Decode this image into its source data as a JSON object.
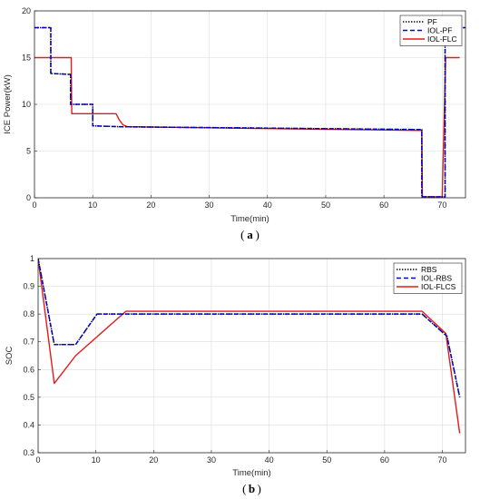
{
  "colors": {
    "black": "#000000",
    "blue": "#0000cc",
    "red": "#e41a1c",
    "grid": "#dcdcdc"
  },
  "chart_data": [
    {
      "type": "line",
      "caption": "a",
      "xlabel": "Time(min)",
      "ylabel": "ICE Power(kW)",
      "xlim": [
        0,
        74
      ],
      "ylim": [
        0,
        20
      ],
      "xticks": [
        0,
        10,
        20,
        30,
        40,
        50,
        60,
        70
      ],
      "yticks": [
        0,
        5,
        10,
        15,
        20
      ],
      "grid": true,
      "legend_position": "top-right",
      "series": [
        {
          "name": "PF",
          "style": "dotted",
          "color": "#000000",
          "x": [
            0,
            2.8,
            2.8,
            6.2,
            6.2,
            10,
            10,
            15,
            66.5,
            66.5,
            70.5,
            70.5,
            74
          ],
          "y": [
            18.2,
            18.2,
            13.3,
            13.2,
            10.0,
            10.0,
            7.7,
            7.6,
            7.3,
            0.1,
            0.1,
            18.2,
            18.2
          ]
        },
        {
          "name": "IOL-PF",
          "style": "dashed",
          "color": "#0000cc",
          "x": [
            0,
            2.8,
            2.8,
            6.2,
            6.2,
            10,
            10,
            15,
            66.5,
            66.5,
            70.5,
            70.5,
            74
          ],
          "y": [
            18.2,
            18.2,
            13.3,
            13.2,
            10.0,
            10.0,
            7.7,
            7.6,
            7.3,
            0.1,
            0.1,
            18.2,
            18.2
          ]
        },
        {
          "name": "IOL-FLC",
          "style": "solid",
          "color": "#e41a1c",
          "x": [
            0,
            6.3,
            6.4,
            14,
            14.6,
            15.2,
            16,
            66.5,
            66.6,
            70,
            70.6,
            73
          ],
          "y": [
            15.0,
            15.0,
            9.0,
            9.0,
            8.3,
            7.8,
            7.6,
            7.2,
            0.1,
            0.1,
            15.0,
            15.0
          ]
        }
      ]
    },
    {
      "type": "line",
      "caption": "b",
      "xlabel": "Time(min)",
      "ylabel": "SOC",
      "xlim": [
        0,
        74
      ],
      "ylim": [
        0.3,
        1.0
      ],
      "xticks": [
        0,
        10,
        20,
        30,
        40,
        50,
        60,
        70
      ],
      "yticks": [
        0.3,
        0.4,
        0.5,
        0.6,
        0.7,
        0.8,
        0.9,
        1.0
      ],
      "grid": true,
      "legend_position": "top-right",
      "series": [
        {
          "name": "RBS",
          "style": "dotted",
          "color": "#000000",
          "x": [
            0,
            2.8,
            6.5,
            10.2,
            66.5,
            70.8,
            73
          ],
          "y": [
            1.0,
            0.69,
            0.69,
            0.8,
            0.8,
            0.72,
            0.5
          ]
        },
        {
          "name": "IOL-RBS",
          "style": "dashed",
          "color": "#0000cc",
          "x": [
            0,
            2.8,
            6.5,
            10.2,
            66.5,
            70.8,
            73
          ],
          "y": [
            1.0,
            0.69,
            0.69,
            0.8,
            0.8,
            0.72,
            0.5
          ]
        },
        {
          "name": "IOL-FLCS",
          "style": "solid",
          "color": "#e41a1c",
          "x": [
            0,
            2.8,
            6.5,
            15.2,
            66.5,
            70.6,
            73
          ],
          "y": [
            1.0,
            0.55,
            0.65,
            0.81,
            0.81,
            0.73,
            0.37
          ]
        }
      ]
    }
  ]
}
